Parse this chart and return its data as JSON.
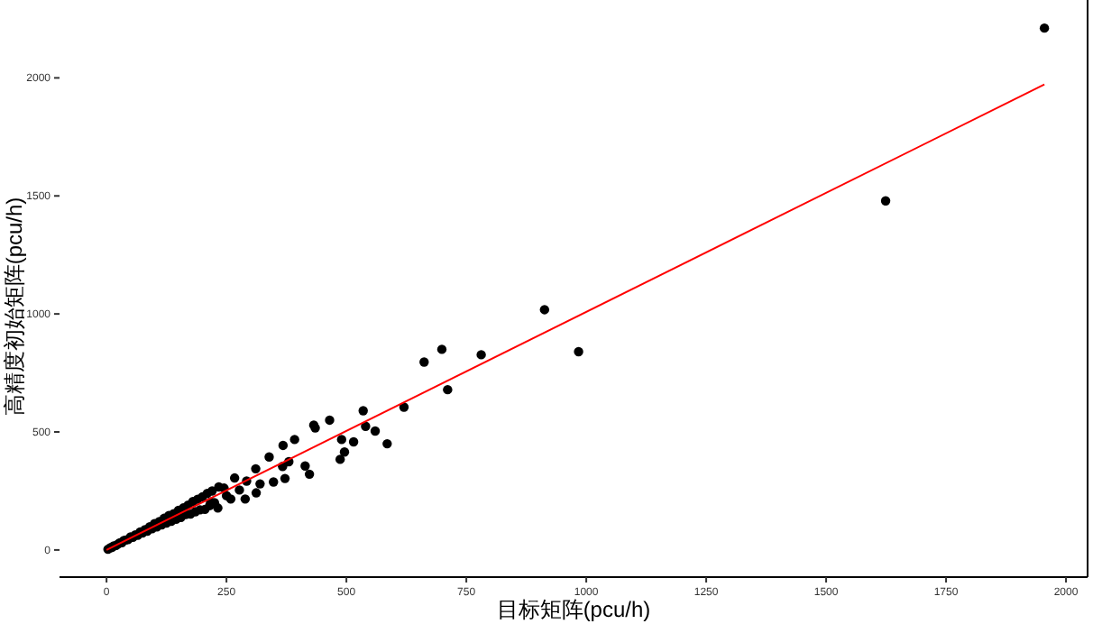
{
  "chart_data": {
    "type": "scatter",
    "xlabel": "目标矩阵(pcu/h)",
    "ylabel": "高精度初始矩阵(pcu/h)",
    "xlim": [
      -98,
      2045
    ],
    "ylim": [
      -115,
      2330
    ],
    "xticks": [
      0,
      250,
      500,
      750,
      1000,
      1250,
      1500,
      1750,
      2000
    ],
    "yticks": [
      0,
      500,
      1000,
      1500,
      2000
    ],
    "grid": false,
    "series": [
      {
        "marker": "circle",
        "color": "#000000",
        "x": [
          3,
          8,
          12,
          15,
          20,
          25,
          28,
          32,
          36,
          40,
          45,
          50,
          55,
          60,
          65,
          70,
          75,
          80,
          85,
          90,
          95,
          100,
          105,
          110,
          115,
          120,
          125,
          130,
          135,
          140,
          145,
          150,
          155,
          160,
          165,
          170,
          175,
          180,
          185,
          190,
          195,
          200,
          205,
          210,
          215,
          220,
          225,
          245,
          250,
          217,
          232,
          234,
          259,
          267,
          277,
          289,
          292,
          311,
          312,
          320,
          339,
          348,
          367,
          368,
          372,
          380,
          392,
          414,
          423,
          432,
          435,
          465,
          487,
          490,
          496,
          515,
          535,
          540,
          560,
          585,
          620,
          662,
          699,
          711,
          781,
          913,
          984,
          1624,
          1955
        ],
        "values": [
          3,
          9,
          12,
          17,
          19,
          27,
          30,
          31,
          40,
          42,
          44,
          55,
          54,
          64,
          62,
          76,
          72,
          86,
          80,
          98,
          90,
          112,
          98,
          120,
          106,
          134,
          114,
          146,
          122,
          154,
          130,
          168,
          138,
          178,
          150,
          190,
          152,
          205,
          162,
          215,
          170,
          225,
          172,
          240,
          188,
          250,
          200,
          262,
          230,
          203,
          178,
          267,
          216,
          305,
          254,
          216,
          292,
          344,
          242,
          280,
          394,
          288,
          354,
          443,
          303,
          374,
          468,
          356,
          321,
          529,
          517,
          550,
          384,
          468,
          415,
          458,
          590,
          524,
          504,
          450,
          605,
          796,
          850,
          679,
          827,
          1018,
          840,
          1479,
          2211
        ]
      },
      {
        "type": "line",
        "marker": "none",
        "color": "#ff0000",
        "x": [
          0,
          1955
        ],
        "values": [
          0,
          1972
        ]
      }
    ]
  }
}
